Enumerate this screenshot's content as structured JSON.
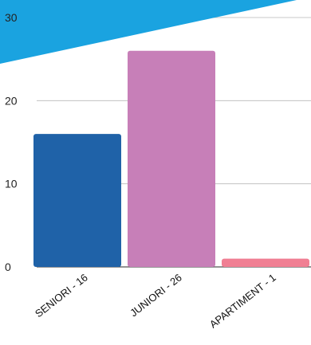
{
  "chart_data": {
    "type": "bar",
    "categories": [
      "SENIORI - 16",
      "JUNIORI - 26",
      "APARTIMENT - 1"
    ],
    "values": [
      16,
      26,
      1
    ],
    "colors": [
      "#1f62a8",
      "#c77fb8",
      "#f07f93"
    ],
    "yticks": [
      0,
      10,
      20,
      30
    ],
    "ylim": [
      0,
      30
    ],
    "grid": true,
    "title": "",
    "xlabel": "",
    "ylabel": ""
  },
  "decor": {
    "corner_color": "#1aa3e0"
  }
}
